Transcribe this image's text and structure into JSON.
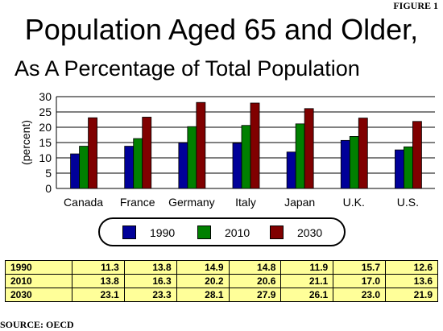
{
  "figure_label": "FIGURE 1",
  "source": "SOURCE: OECD",
  "chart_data": {
    "type": "bar",
    "title": "Population Aged 65 and Older,",
    "subtitle": "As A Percentage of Total Population",
    "ylabel": "(percent)",
    "xlabel": "",
    "ylim": [
      0,
      30
    ],
    "yticks": [
      0,
      5,
      10,
      15,
      20,
      25,
      30
    ],
    "grid": true,
    "legend_placement": "bottom",
    "categories": [
      "Canada",
      "France",
      "Germany",
      "Italy",
      "Japan",
      "U.K.",
      "U.S."
    ],
    "series": [
      {
        "name": "1990",
        "color": "#000099",
        "values": [
          11.3,
          13.8,
          14.9,
          14.8,
          11.9,
          15.7,
          12.6
        ]
      },
      {
        "name": "2010",
        "color": "#008000",
        "values": [
          13.8,
          16.3,
          20.2,
          20.6,
          21.1,
          17.0,
          13.6
        ]
      },
      {
        "name": "2030",
        "color": "#800000",
        "values": [
          23.1,
          23.3,
          28.1,
          27.9,
          26.1,
          23.0,
          21.9
        ]
      }
    ]
  },
  "table": {
    "rows": [
      {
        "label": "1990",
        "values": [
          "11.3",
          "13.8",
          "14.9",
          "14.8",
          "11.9",
          "15.7",
          "12.6"
        ]
      },
      {
        "label": "2010",
        "values": [
          "13.8",
          "16.3",
          "20.2",
          "20.6",
          "21.1",
          "17.0",
          "13.6"
        ]
      },
      {
        "label": "2030",
        "values": [
          "23.1",
          "23.3",
          "28.1",
          "27.9",
          "26.1",
          "23.0",
          "21.9"
        ]
      }
    ]
  }
}
